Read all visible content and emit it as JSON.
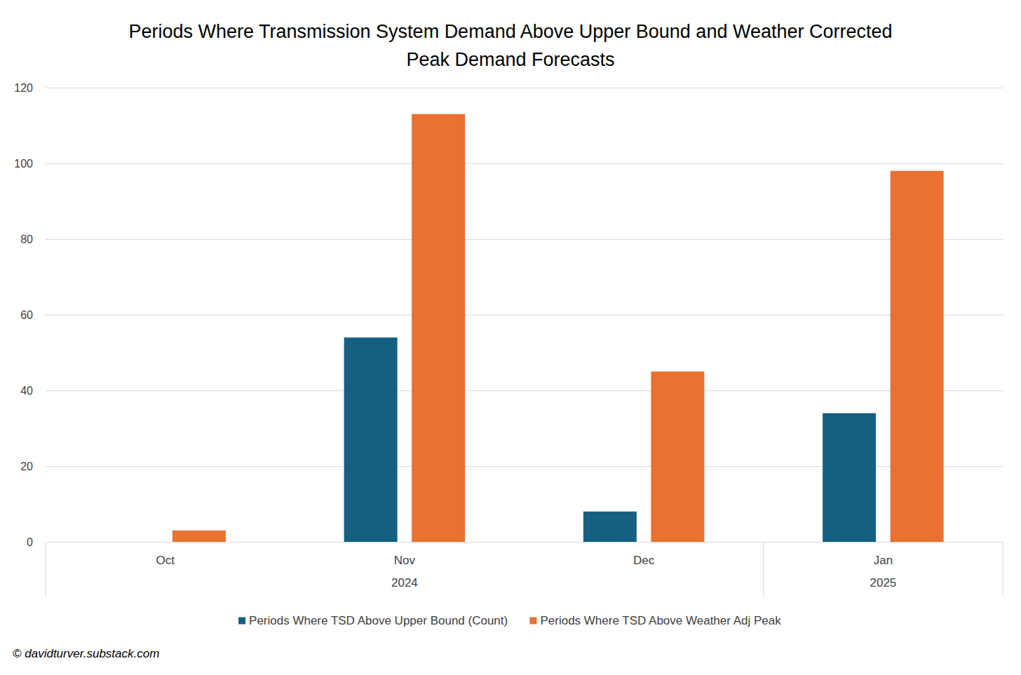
{
  "chart_data": {
    "type": "bar",
    "title": "Periods Where Transmission System Demand Above Upper Bound and Weather Corrected\nPeak Demand Forecasts",
    "categories": [
      "Oct",
      "Nov",
      "Dec",
      "Jan"
    ],
    "category_groups": [
      "2024",
      "2024",
      "2024",
      "2025"
    ],
    "series": [
      {
        "name": "Periods Where TSD Above Upper Bound (Count)",
        "color": "#156082",
        "values": [
          0,
          54,
          8,
          34
        ]
      },
      {
        "name": "Periods Where TSD Above Weather Adj Peak",
        "color": "#e97132",
        "values": [
          3,
          113,
          45,
          98
        ]
      }
    ],
    "ylim": [
      0,
      120
    ],
    "yticks": [
      0,
      20,
      40,
      60,
      80,
      100,
      120
    ],
    "grid": true,
    "legend": "bottom",
    "annotations": [
      "© davidturver.substack.com"
    ]
  }
}
